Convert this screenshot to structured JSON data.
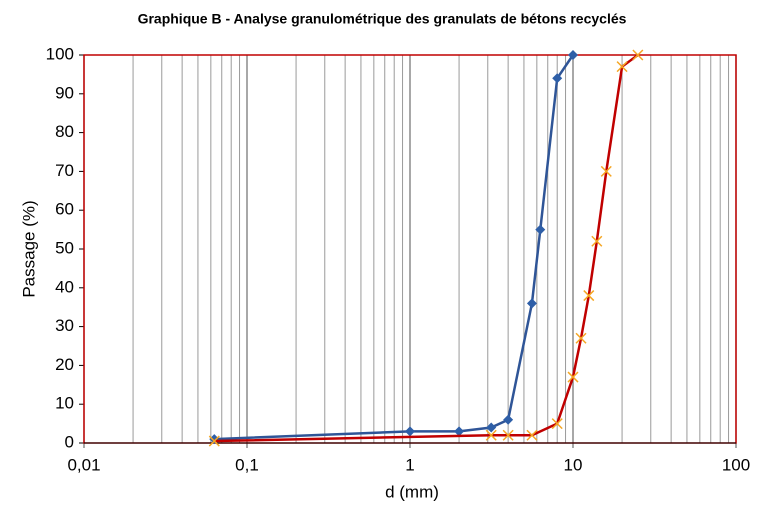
{
  "chart_data": {
    "type": "line",
    "title": "Graphique B - Analyse granulométrique des granulats de bétons recyclés",
    "x_label": "d (mm)",
    "y_label": "Passage (%)",
    "xscale": "log",
    "minor_grid": true,
    "plot_border_color": "#c00000",
    "xlim": [
      0.01,
      100
    ],
    "xticks": [
      {
        "value": 0.01,
        "label": "0,01"
      },
      {
        "value": 0.1,
        "label": "0,1"
      },
      1,
      10,
      100
    ],
    "ylim": [
      0,
      100
    ],
    "yticks": [
      0,
      10,
      20,
      30,
      40,
      50,
      60,
      70,
      80,
      90,
      100
    ],
    "series": [
      {
        "color": "#2f5597",
        "marker": "diamond",
        "marker_color": "#2e5fa8",
        "x": [
          0.063,
          1,
          2,
          3.15,
          4,
          5.6,
          6.3,
          8,
          10
        ],
        "values": [
          1,
          3,
          3,
          4,
          6,
          36,
          55,
          94,
          100
        ]
      },
      {
        "color": "#c00000",
        "marker": "x",
        "marker_color": "#f5a623",
        "x": [
          0.063,
          3.15,
          4,
          5.6,
          8,
          10,
          11.2,
          12.5,
          14,
          16,
          20,
          25
        ],
        "values": [
          0.5,
          2,
          2,
          2,
          5,
          17,
          27,
          38,
          52,
          70,
          97,
          100
        ]
      }
    ]
  }
}
